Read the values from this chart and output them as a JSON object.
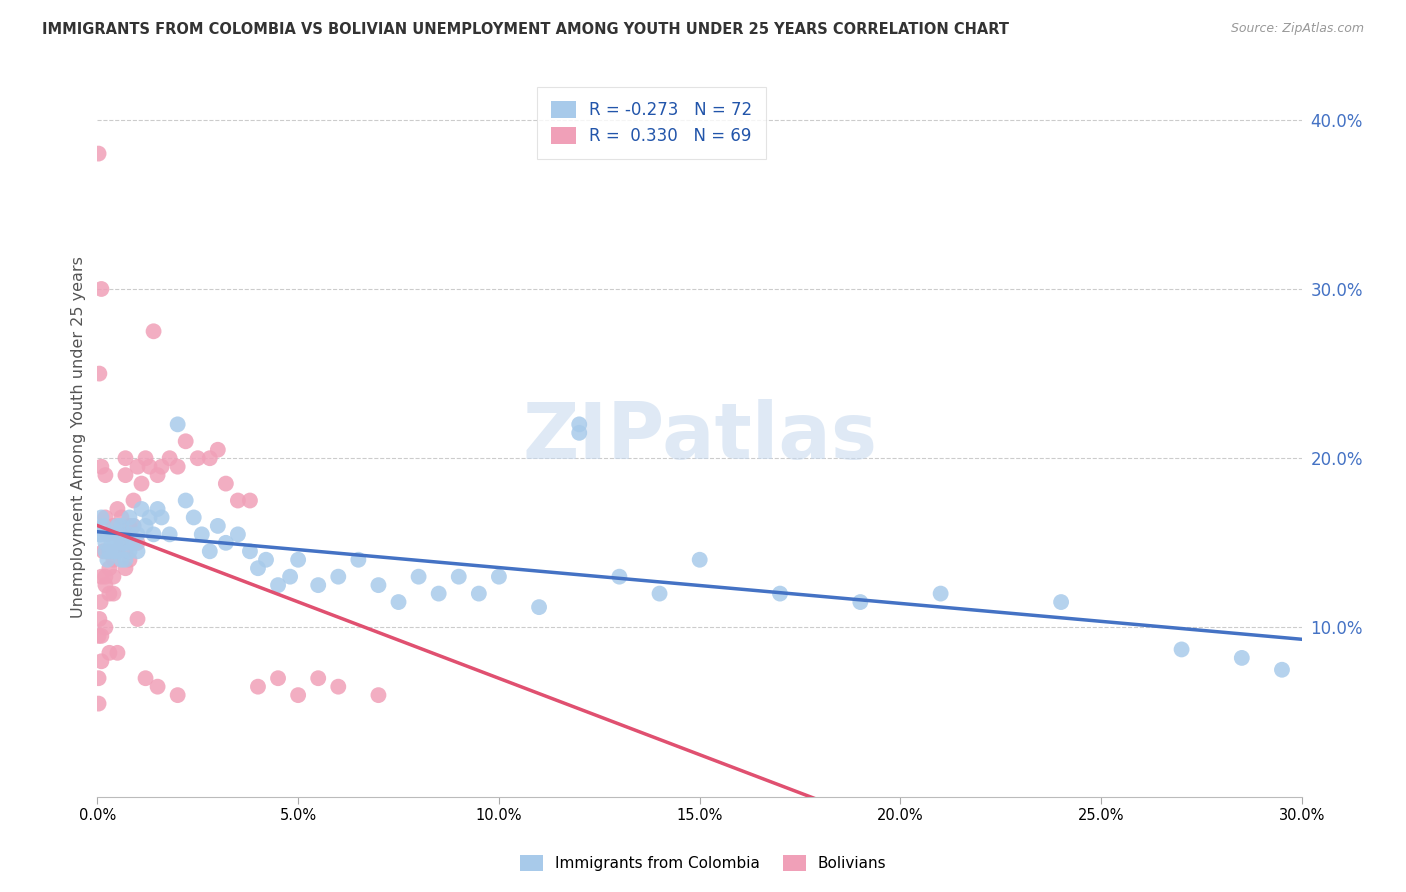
{
  "title": "IMMIGRANTS FROM COLOMBIA VS BOLIVIAN UNEMPLOYMENT AMONG YOUTH UNDER 25 YEARS CORRELATION CHART",
  "source": "Source: ZipAtlas.com",
  "ylabel": "Unemployment Among Youth under 25 years",
  "ylabel_right_ticks": [
    "40.0%",
    "30.0%",
    "20.0%",
    "10.0%"
  ],
  "ylabel_right_vals": [
    0.4,
    0.3,
    0.2,
    0.1
  ],
  "xmin": 0.0,
  "xmax": 0.3,
  "ymin": 0.0,
  "ymax": 0.425,
  "color_blue": "#A8CAEA",
  "color_pink": "#F0A0B8",
  "color_blue_line": "#4472C4",
  "color_pink_line": "#E05070",
  "color_pink_dash": "#D0A0B0",
  "watermark": "ZIPatlas",
  "blue_scatter_x": [
    0.0005,
    0.001,
    0.001,
    0.0015,
    0.002,
    0.002,
    0.0025,
    0.003,
    0.003,
    0.0035,
    0.004,
    0.004,
    0.0045,
    0.005,
    0.005,
    0.005,
    0.006,
    0.006,
    0.006,
    0.007,
    0.007,
    0.008,
    0.008,
    0.008,
    0.009,
    0.009,
    0.01,
    0.01,
    0.011,
    0.012,
    0.013,
    0.014,
    0.015,
    0.016,
    0.018,
    0.02,
    0.022,
    0.024,
    0.026,
    0.028,
    0.03,
    0.032,
    0.035,
    0.038,
    0.04,
    0.042,
    0.045,
    0.048,
    0.05,
    0.055,
    0.06,
    0.065,
    0.07,
    0.075,
    0.08,
    0.085,
    0.09,
    0.095,
    0.1,
    0.11,
    0.12,
    0.13,
    0.14,
    0.15,
    0.17,
    0.19,
    0.21,
    0.24,
    0.27,
    0.12,
    0.285,
    0.295
  ],
  "blue_scatter_y": [
    0.155,
    0.165,
    0.155,
    0.16,
    0.145,
    0.15,
    0.14,
    0.145,
    0.155,
    0.15,
    0.155,
    0.145,
    0.15,
    0.145,
    0.155,
    0.16,
    0.15,
    0.14,
    0.16,
    0.15,
    0.14,
    0.155,
    0.145,
    0.165,
    0.15,
    0.16,
    0.155,
    0.145,
    0.17,
    0.16,
    0.165,
    0.155,
    0.17,
    0.165,
    0.155,
    0.22,
    0.175,
    0.165,
    0.155,
    0.145,
    0.16,
    0.15,
    0.155,
    0.145,
    0.135,
    0.14,
    0.125,
    0.13,
    0.14,
    0.125,
    0.13,
    0.14,
    0.125,
    0.115,
    0.13,
    0.12,
    0.13,
    0.12,
    0.13,
    0.112,
    0.22,
    0.13,
    0.12,
    0.14,
    0.12,
    0.115,
    0.12,
    0.115,
    0.087,
    0.215,
    0.082,
    0.075
  ],
  "pink_scatter_x": [
    0.0003,
    0.0003,
    0.0003,
    0.0005,
    0.0008,
    0.001,
    0.001,
    0.001,
    0.0015,
    0.002,
    0.002,
    0.002,
    0.0025,
    0.003,
    0.003,
    0.003,
    0.004,
    0.004,
    0.004,
    0.005,
    0.005,
    0.005,
    0.006,
    0.006,
    0.007,
    0.007,
    0.007,
    0.008,
    0.008,
    0.009,
    0.009,
    0.01,
    0.01,
    0.011,
    0.012,
    0.013,
    0.014,
    0.015,
    0.016,
    0.018,
    0.02,
    0.022,
    0.025,
    0.028,
    0.03,
    0.032,
    0.035,
    0.038,
    0.04,
    0.045,
    0.05,
    0.055,
    0.06,
    0.07,
    0.0003,
    0.0005,
    0.001,
    0.001,
    0.002,
    0.002,
    0.003,
    0.004,
    0.005,
    0.006,
    0.007,
    0.01,
    0.012,
    0.015,
    0.02
  ],
  "pink_scatter_y": [
    0.055,
    0.07,
    0.095,
    0.105,
    0.115,
    0.13,
    0.095,
    0.08,
    0.145,
    0.1,
    0.165,
    0.13,
    0.155,
    0.135,
    0.085,
    0.145,
    0.14,
    0.13,
    0.16,
    0.155,
    0.145,
    0.17,
    0.165,
    0.15,
    0.2,
    0.145,
    0.19,
    0.16,
    0.14,
    0.175,
    0.16,
    0.195,
    0.15,
    0.185,
    0.2,
    0.195,
    0.275,
    0.19,
    0.195,
    0.2,
    0.195,
    0.21,
    0.2,
    0.2,
    0.205,
    0.185,
    0.175,
    0.175,
    0.065,
    0.07,
    0.06,
    0.07,
    0.065,
    0.06,
    0.38,
    0.25,
    0.3,
    0.195,
    0.19,
    0.125,
    0.12,
    0.12,
    0.085,
    0.155,
    0.135,
    0.105,
    0.07,
    0.065,
    0.06
  ]
}
